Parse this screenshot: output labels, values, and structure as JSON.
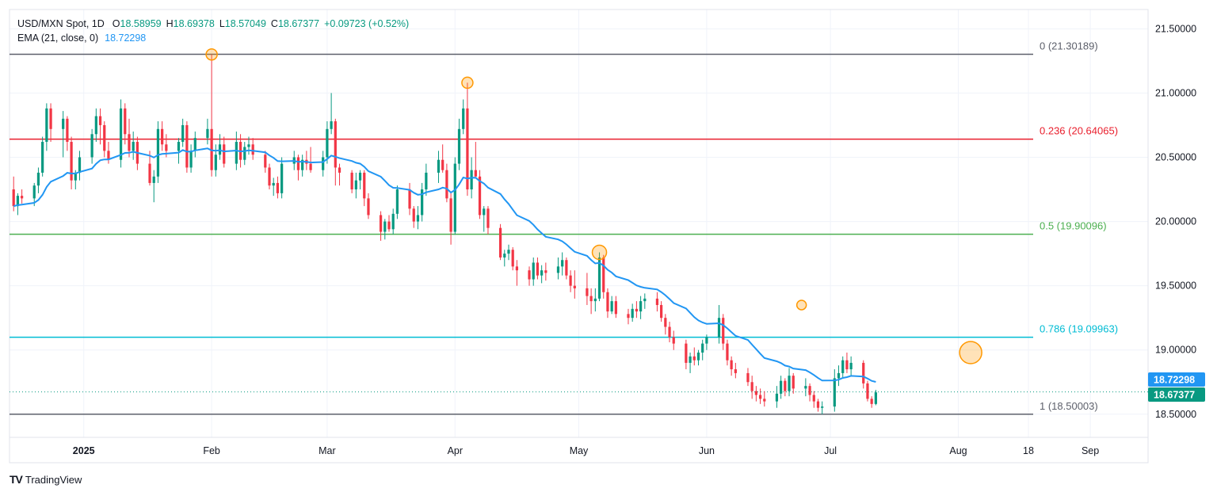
{
  "header": {
    "symbol": "USD/MXN Spot, 1D",
    "open_label": "O",
    "open": "18.58959",
    "high_label": "H",
    "high": "18.69378",
    "low_label": "L",
    "low": "18.57049",
    "close_label": "C",
    "close": "18.67377",
    "change": "+0.09723 (+0.52%)",
    "ema_label": "EMA (21, close, 0)",
    "ema_value": "18.72298"
  },
  "branding": {
    "logo": "TV",
    "name": "TradingView"
  },
  "colors": {
    "up": "#089981",
    "down": "#f23645",
    "ema": "#2196f3",
    "fib_0": "#5d606b",
    "fib_236": "#e91e2c",
    "fib_5": "#4caf50",
    "fib_786": "#00bcd4",
    "fib_1": "#5d606b",
    "marker": "#ff9800",
    "grid": "#f0f3fa",
    "axis_text": "#131722"
  },
  "chart_data": {
    "type": "candlestick",
    "ylim": [
      18.32,
      21.65
    ],
    "y_ticks": [
      "21.50000",
      "21.00000",
      "20.50000",
      "20.00000",
      "19.50000",
      "19.00000",
      "18.50000"
    ],
    "y_tick_values": [
      21.5,
      21.0,
      20.5,
      20.0,
      19.5,
      19.0,
      18.5
    ],
    "x_ticks": [
      {
        "label": "2025",
        "day": 18
      },
      {
        "label": "Feb",
        "day": 49
      },
      {
        "label": "Mar",
        "day": 77
      },
      {
        "label": "Apr",
        "day": 108
      },
      {
        "label": "May",
        "day": 138
      },
      {
        "label": "Jun",
        "day": 169
      },
      {
        "label": "Jul",
        "day": 199
      },
      {
        "label": "Aug",
        "day": 230
      },
      {
        "label": "18",
        "day": 247
      },
      {
        "label": "Sep",
        "day": 262
      }
    ],
    "fib_levels": [
      {
        "ratio": "0",
        "price": 21.30189,
        "label": "0 (21.30189)",
        "color": "fib_0"
      },
      {
        "ratio": "0.236",
        "price": 20.64065,
        "label": "0.236 (20.64065)",
        "color": "fib_236"
      },
      {
        "ratio": "0.5",
        "price": 19.90096,
        "label": "0.5 (19.90096)",
        "color": "fib_5"
      },
      {
        "ratio": "0.786",
        "price": 19.09963,
        "label": "0.786 (19.09963)",
        "color": "fib_786"
      },
      {
        "ratio": "1",
        "price": 18.50003,
        "label": "1 (18.50003)",
        "color": "fib_1"
      }
    ],
    "price_tags": [
      {
        "value": 18.72298,
        "label": "18.72298",
        "color": "ema"
      },
      {
        "value": 18.67377,
        "label": "18.67377",
        "color": "up"
      }
    ],
    "current_close": 18.67377,
    "markers": [
      {
        "day": 49,
        "price": 21.3,
        "r": 7
      },
      {
        "day": 111,
        "price": 21.08,
        "r": 7
      },
      {
        "day": 143,
        "price": 19.76,
        "r": 9
      },
      {
        "day": 192,
        "price": 19.35,
        "r": 6
      },
      {
        "day": 233,
        "price": 18.98,
        "r": 14
      }
    ],
    "ohlc_key": [
      "day",
      "open",
      "high",
      "low",
      "close"
    ],
    "candles": [
      [
        1,
        20.25,
        20.35,
        20.08,
        20.12
      ],
      [
        2,
        20.12,
        20.22,
        20.05,
        20.2
      ],
      [
        3,
        20.2,
        20.25,
        20.14,
        20.18
      ],
      [
        6,
        20.18,
        20.3,
        20.12,
        20.28
      ],
      [
        7,
        20.28,
        20.42,
        20.22,
        20.38
      ],
      [
        8,
        20.38,
        20.66,
        20.35,
        20.62
      ],
      [
        9,
        20.62,
        20.92,
        20.55,
        20.88
      ],
      [
        10,
        20.88,
        20.92,
        20.62,
        20.72
      ],
      [
        13,
        20.72,
        20.86,
        20.5,
        20.8
      ],
      [
        14,
        20.8,
        20.82,
        20.55,
        20.62
      ],
      [
        15,
        20.62,
        20.66,
        20.25,
        20.32
      ],
      [
        16,
        20.32,
        20.4,
        20.25,
        20.38
      ],
      [
        17,
        20.38,
        20.55,
        20.32,
        20.5
      ],
      [
        20,
        20.5,
        20.72,
        20.45,
        20.68
      ],
      [
        21,
        20.68,
        20.88,
        20.62,
        20.82
      ],
      [
        22,
        20.82,
        20.88,
        20.6,
        20.75
      ],
      [
        23,
        20.75,
        20.78,
        20.5,
        20.55
      ],
      [
        24,
        20.55,
        20.62,
        20.45,
        20.48
      ],
      [
        27,
        20.48,
        20.95,
        20.42,
        20.88
      ],
      [
        28,
        20.88,
        20.92,
        20.6,
        20.68
      ],
      [
        29,
        20.68,
        20.8,
        20.5,
        20.55
      ],
      [
        30,
        20.55,
        20.7,
        20.48,
        20.62
      ],
      [
        31,
        20.62,
        20.66,
        20.4,
        20.45
      ],
      [
        34,
        20.45,
        20.55,
        20.28,
        20.3
      ],
      [
        35,
        20.3,
        20.4,
        20.15,
        20.35
      ],
      [
        36,
        20.35,
        20.78,
        20.3,
        20.72
      ],
      [
        37,
        20.72,
        20.78,
        20.55,
        20.6
      ],
      [
        38,
        20.6,
        20.68,
        20.5,
        20.55
      ],
      [
        41,
        20.55,
        20.65,
        20.45,
        20.62
      ],
      [
        42,
        20.62,
        20.8,
        20.58,
        20.75
      ],
      [
        43,
        20.75,
        20.78,
        20.38,
        20.42
      ],
      [
        44,
        20.42,
        20.6,
        20.38,
        20.55
      ],
      [
        45,
        20.55,
        20.7,
        20.5,
        20.65
      ],
      [
        48,
        20.65,
        20.8,
        20.6,
        20.72
      ],
      [
        49,
        20.72,
        21.3,
        20.35,
        20.4
      ],
      [
        50,
        20.4,
        20.6,
        20.35,
        20.52
      ],
      [
        51,
        20.52,
        20.68,
        20.48,
        20.6
      ],
      [
        52,
        20.6,
        20.66,
        20.42,
        20.45
      ],
      [
        55,
        20.45,
        20.7,
        20.4,
        20.62
      ],
      [
        56,
        20.62,
        20.68,
        20.42,
        20.48
      ],
      [
        57,
        20.48,
        20.62,
        20.44,
        20.58
      ],
      [
        58,
        20.58,
        20.66,
        20.52,
        20.6
      ],
      [
        59,
        20.6,
        20.65,
        20.48,
        20.52
      ],
      [
        62,
        20.52,
        20.55,
        20.38,
        20.42
      ],
      [
        63,
        20.42,
        20.45,
        20.25,
        20.28
      ],
      [
        64,
        20.28,
        20.34,
        20.2,
        20.3
      ],
      [
        65,
        20.3,
        20.35,
        20.18,
        20.22
      ],
      [
        66,
        20.22,
        20.5,
        20.18,
        20.45
      ],
      [
        69,
        20.45,
        20.55,
        20.4,
        20.5
      ],
      [
        70,
        20.5,
        20.52,
        20.32,
        20.4
      ],
      [
        71,
        20.4,
        20.52,
        20.35,
        20.48
      ],
      [
        72,
        20.48,
        20.55,
        20.4,
        20.45
      ],
      [
        73,
        20.45,
        20.58,
        20.38,
        20.4
      ],
      [
        76,
        20.4,
        20.55,
        20.35,
        20.5
      ],
      [
        77,
        20.5,
        20.78,
        20.45,
        20.72
      ],
      [
        78,
        20.72,
        21.0,
        20.68,
        20.78
      ],
      [
        79,
        20.78,
        20.8,
        20.28,
        20.42
      ],
      [
        80,
        20.42,
        20.45,
        20.28,
        20.38
      ],
      [
        83,
        20.38,
        20.4,
        20.22,
        20.25
      ],
      [
        84,
        20.25,
        20.38,
        20.18,
        20.32
      ],
      [
        85,
        20.32,
        20.4,
        20.25,
        20.38
      ],
      [
        86,
        20.38,
        20.4,
        20.12,
        20.18
      ],
      [
        87,
        20.18,
        20.22,
        20.02,
        20.05
      ],
      [
        90,
        20.05,
        20.08,
        19.85,
        19.92
      ],
      [
        91,
        19.92,
        20.02,
        19.86,
        20.0
      ],
      [
        92,
        20.0,
        20.05,
        19.92,
        19.94
      ],
      [
        93,
        19.94,
        20.1,
        19.9,
        20.06
      ],
      [
        94,
        20.06,
        20.28,
        20.02,
        20.25
      ],
      [
        97,
        20.25,
        20.3,
        20.05,
        20.1
      ],
      [
        98,
        20.1,
        20.12,
        19.95,
        20.0
      ],
      [
        99,
        20.0,
        20.12,
        19.94,
        20.05
      ],
      [
        100,
        20.05,
        20.3,
        20.0,
        20.25
      ],
      [
        101,
        20.25,
        20.45,
        20.2,
        20.38
      ],
      [
        104,
        20.38,
        20.55,
        20.3,
        20.48
      ],
      [
        105,
        20.48,
        20.6,
        20.38,
        20.4
      ],
      [
        106,
        20.4,
        20.45,
        20.15,
        20.18
      ],
      [
        107,
        20.18,
        20.22,
        19.82,
        19.92
      ],
      [
        108,
        19.92,
        20.5,
        19.9,
        20.45
      ],
      [
        109,
        20.45,
        20.8,
        20.4,
        20.72
      ],
      [
        110,
        20.72,
        20.95,
        20.68,
        20.88
      ],
      [
        111,
        20.88,
        21.08,
        20.2,
        20.25
      ],
      [
        112,
        20.25,
        20.5,
        20.18,
        20.4
      ],
      [
        113,
        20.4,
        20.62,
        20.35,
        20.35
      ],
      [
        114,
        20.35,
        20.4,
        20.02,
        20.05
      ],
      [
        115,
        20.05,
        20.12,
        19.92,
        20.1
      ],
      [
        116,
        20.1,
        20.12,
        19.9,
        19.95
      ],
      [
        119,
        19.95,
        19.98,
        19.7,
        19.72
      ],
      [
        120,
        19.72,
        19.78,
        19.65,
        19.75
      ],
      [
        121,
        19.75,
        19.82,
        19.7,
        19.78
      ],
      [
        122,
        19.78,
        19.8,
        19.62,
        19.65
      ],
      [
        123,
        19.65,
        19.7,
        19.5,
        19.62
      ],
      [
        126,
        19.62,
        19.65,
        19.5,
        19.55
      ],
      [
        127,
        19.55,
        19.72,
        19.5,
        19.68
      ],
      [
        128,
        19.68,
        19.72,
        19.55,
        19.58
      ],
      [
        129,
        19.58,
        19.66,
        19.52,
        19.62
      ],
      [
        130,
        19.62,
        19.68,
        19.54,
        19.6
      ],
      [
        133,
        19.6,
        19.72,
        19.55,
        19.65
      ],
      [
        134,
        19.65,
        19.76,
        19.58,
        19.7
      ],
      [
        135,
        19.7,
        19.72,
        19.55,
        19.58
      ],
      [
        136,
        19.58,
        19.62,
        19.45,
        19.5
      ],
      [
        137,
        19.5,
        19.62,
        19.4,
        19.48
      ],
      [
        140,
        19.48,
        19.6,
        19.35,
        19.42
      ],
      [
        141,
        19.42,
        19.48,
        19.28,
        19.38
      ],
      [
        142,
        19.38,
        19.48,
        19.3,
        19.4
      ],
      [
        143,
        19.4,
        19.76,
        19.38,
        19.72
      ],
      [
        144,
        19.72,
        19.74,
        19.4,
        19.45
      ],
      [
        145,
        19.45,
        19.48,
        19.25,
        19.3
      ],
      [
        146,
        19.3,
        19.42,
        19.28,
        19.38
      ],
      [
        147,
        19.38,
        19.42,
        19.25,
        19.28
      ],
      [
        150,
        19.28,
        19.32,
        19.2,
        19.25
      ],
      [
        151,
        19.25,
        19.36,
        19.22,
        19.32
      ],
      [
        152,
        19.32,
        19.38,
        19.25,
        19.3
      ],
      [
        153,
        19.3,
        19.42,
        19.24,
        19.38
      ],
      [
        154,
        19.38,
        19.44,
        19.32,
        19.4
      ],
      [
        157,
        19.4,
        19.45,
        19.3,
        19.35
      ],
      [
        158,
        19.35,
        19.38,
        19.22,
        19.25
      ],
      [
        159,
        19.25,
        19.28,
        19.12,
        19.18
      ],
      [
        160,
        19.18,
        19.22,
        19.06,
        19.1
      ],
      [
        161,
        19.1,
        19.15,
        19.0,
        19.05
      ],
      [
        164,
        19.05,
        19.08,
        18.85,
        18.9
      ],
      [
        165,
        18.9,
        18.98,
        18.82,
        18.95
      ],
      [
        166,
        18.95,
        19.02,
        18.88,
        18.92
      ],
      [
        167,
        18.92,
        19.0,
        18.88,
        18.98
      ],
      [
        168,
        18.98,
        19.08,
        18.92,
        19.05
      ],
      [
        169,
        19.05,
        19.12,
        19.0,
        19.1
      ],
      [
        172,
        19.1,
        19.35,
        19.05,
        19.25
      ],
      [
        173,
        19.25,
        19.28,
        19.0,
        19.05
      ],
      [
        174,
        19.05,
        19.08,
        18.88,
        18.92
      ],
      [
        175,
        18.92,
        18.95,
        18.8,
        18.85
      ],
      [
        176,
        18.85,
        18.9,
        18.78,
        18.82
      ],
      [
        179,
        18.82,
        18.86,
        18.72,
        18.75
      ],
      [
        180,
        18.75,
        18.8,
        18.62,
        18.68
      ],
      [
        181,
        18.68,
        18.72,
        18.6,
        18.65
      ],
      [
        182,
        18.65,
        18.7,
        18.58,
        18.62
      ],
      [
        183,
        18.62,
        18.68,
        18.56,
        18.6
      ],
      [
        186,
        18.6,
        18.72,
        18.55,
        18.66
      ],
      [
        187,
        18.66,
        18.8,
        18.62,
        18.76
      ],
      [
        188,
        18.76,
        18.78,
        18.64,
        18.68
      ],
      [
        189,
        18.68,
        18.86,
        18.64,
        18.8
      ],
      [
        190,
        18.8,
        18.82,
        18.66,
        18.7
      ],
      [
        193,
        18.7,
        18.78,
        18.64,
        18.72
      ],
      [
        194,
        18.72,
        18.74,
        18.6,
        18.65
      ],
      [
        195,
        18.65,
        18.68,
        18.55,
        18.6
      ],
      [
        196,
        18.6,
        18.62,
        18.52,
        18.55
      ],
      [
        197,
        18.55,
        18.6,
        18.5,
        18.56
      ],
      [
        200,
        18.56,
        18.85,
        18.52,
        18.78
      ],
      [
        201,
        18.78,
        18.88,
        18.72,
        18.82
      ],
      [
        202,
        18.82,
        18.95,
        18.78,
        18.92
      ],
      [
        203,
        18.92,
        18.98,
        18.82,
        18.85
      ],
      [
        204,
        18.85,
        18.95,
        18.8,
        18.9
      ],
      [
        207,
        18.9,
        18.92,
        18.7,
        18.74
      ],
      [
        208,
        18.74,
        18.76,
        18.6,
        18.62
      ],
      [
        209,
        18.62,
        18.64,
        18.55,
        18.58
      ],
      [
        210,
        18.58,
        18.69,
        18.57,
        18.67
      ]
    ]
  }
}
